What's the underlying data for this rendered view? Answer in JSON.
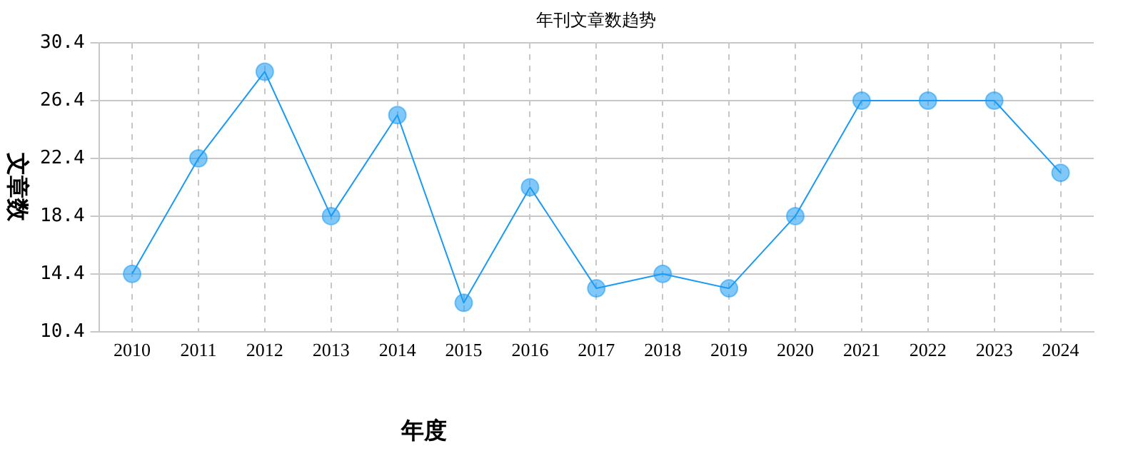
{
  "chart_data": {
    "type": "line",
    "title": "年刊文章数趋势",
    "xlabel": "年度",
    "ylabel": "文章数",
    "categories": [
      "2010",
      "2011",
      "2012",
      "2013",
      "2014",
      "2015",
      "2016",
      "2017",
      "2018",
      "2019",
      "2020",
      "2021",
      "2022",
      "2023",
      "2024"
    ],
    "series": [
      {
        "color": "#1a9af5",
        "values": [
          14.4,
          22.4,
          28.4,
          18.4,
          25.4,
          12.4,
          20.4,
          13.4,
          14.4,
          13.4,
          18.4,
          26.4,
          26.4,
          26.4,
          21.4
        ]
      }
    ],
    "ylim": [
      10.4,
      30.4
    ],
    "yticks": [
      10.4,
      14.4,
      18.4,
      22.4,
      26.4,
      30.4
    ],
    "grid": true,
    "legend": false,
    "marker": "circle",
    "line_style": "solid"
  }
}
